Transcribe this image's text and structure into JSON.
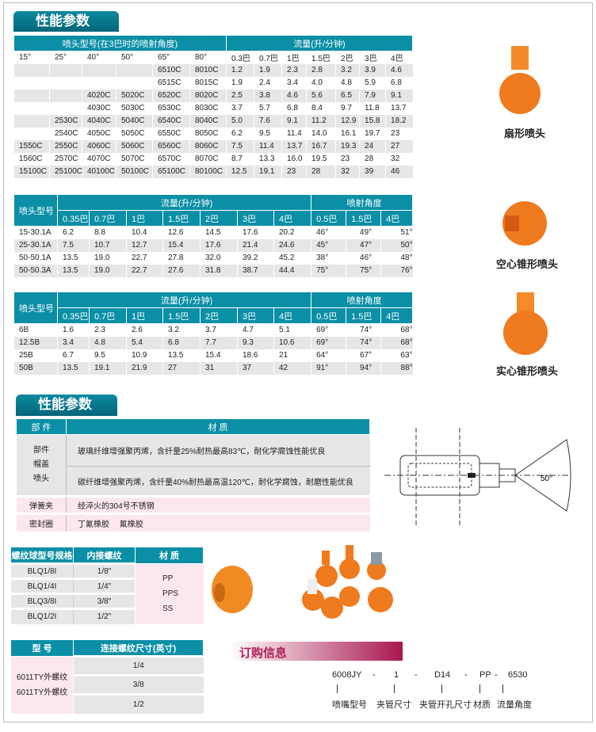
{
  "section_title": "性能参数",
  "fan_table": {
    "group_headers": [
      "喷头型号(在3巴时的喷射角度)",
      "流量(升/分钟)"
    ],
    "columns": [
      "15°",
      "25°",
      "40°",
      "50°",
      "65°",
      "80°",
      "0.3巴",
      "0.7巴",
      "1巴",
      "1.5巴",
      "2巴",
      "3巴",
      "4巴"
    ],
    "rows": [
      [
        "",
        "",
        "",
        "",
        "6510C",
        "8010C",
        "1.2",
        "1.9",
        "2.3",
        "2.8",
        "3.2",
        "3.9",
        "4.6"
      ],
      [
        "",
        "",
        "",
        "",
        "6515C",
        "8015C",
        "1.9",
        "2.4",
        "3.4",
        "4.0",
        "4.8",
        "5.9",
        "6.8"
      ],
      [
        "",
        "",
        "4020C",
        "5020C",
        "6520C",
        "8020C",
        "2.5",
        "3.8",
        "4.6",
        "5.6",
        "6.5",
        "7.9",
        "9.1"
      ],
      [
        "",
        "",
        "4030C",
        "5030C",
        "6530C",
        "8030C",
        "3.7",
        "5.7",
        "6.8",
        "8.4",
        "9.7",
        "11.8",
        "13.7"
      ],
      [
        "",
        "2530C",
        "4040C",
        "5040C",
        "6540C",
        "8040C",
        "5.0",
        "7.6",
        "9.1",
        "11.2",
        "12.9",
        "15.8",
        "18.2"
      ],
      [
        "",
        "2540C",
        "4050C",
        "5050C",
        "6550C",
        "8050C",
        "6.2",
        "9.5",
        "11.4",
        "14.0",
        "16.1",
        "19.7",
        "23"
      ],
      [
        "1550C",
        "2550C",
        "4060C",
        "5060C",
        "6560C",
        "8060C",
        "7.5",
        "11.4",
        "13.7",
        "16.7",
        "19.3",
        "24",
        "27"
      ],
      [
        "1560C",
        "2570C",
        "4070C",
        "5070C",
        "6570C",
        "8070C",
        "8.7",
        "13.3",
        "16.0",
        "19.5",
        "23",
        "28",
        "32"
      ],
      [
        "15100C",
        "25100C",
        "40100C",
        "50100C",
        "65100C",
        "80100C",
        "12.5",
        "19.1",
        "23",
        "28",
        "32",
        "39",
        "46"
      ]
    ]
  },
  "hollow_table": {
    "model_header": "喷头型号",
    "flow_header": "流量(升/分钟)",
    "angle_header": "喷射角度",
    "flow_cols": [
      "0.35巴",
      "0.7巴",
      "1巴",
      "1.5巴",
      "2巴",
      "3巴",
      "4巴"
    ],
    "angle_cols": [
      "0.5巴",
      "1.5巴",
      "4巴"
    ],
    "rows": [
      [
        "15-30.1A",
        "6.2",
        "8.8",
        "10.4",
        "12.6",
        "14.5",
        "17.6",
        "20.2",
        "46°",
        "49°",
        "51°"
      ],
      [
        "25-30.1A",
        "7.5",
        "10.7",
        "12.7",
        "15.4",
        "17.6",
        "21.4",
        "24.6",
        "45°",
        "47°",
        "50°"
      ],
      [
        "50-50.1A",
        "13.5",
        "19.0",
        "22.7",
        "27.8",
        "32.0",
        "39.2",
        "45.2",
        "38°",
        "46°",
        "48°"
      ],
      [
        "50-50.3A",
        "13.5",
        "19.0",
        "22.7",
        "27.6",
        "31.8",
        "38.7",
        "44.4",
        "75°",
        "75°",
        "76°"
      ]
    ]
  },
  "solid_table": {
    "model_header": "喷头型号",
    "flow_header": "流量(升/分钟)",
    "angle_header": "喷射角度",
    "flow_cols": [
      "0.35巴",
      "0.7巴",
      "1巴",
      "1.5巴",
      "2巴",
      "3巴",
      "4巴"
    ],
    "angle_cols": [
      "0.5巴",
      "1.5巴",
      "4巴"
    ],
    "rows": [
      [
        "6B",
        "1.6",
        "2.3",
        "2.6",
        "3.2",
        "3.7",
        "4.7",
        "5.1",
        "69°",
        "74°",
        "68°"
      ],
      [
        "12.5B",
        "3.4",
        "4.8",
        "5.4",
        "6.8",
        "7.7",
        "9.3",
        "10.6",
        "69°",
        "74°",
        "68°"
      ],
      [
        "25B",
        "6.7",
        "9.5",
        "10.9",
        "13.5",
        "15.4",
        "18.6",
        "21",
        "64°",
        "67°",
        "63°"
      ],
      [
        "50B",
        "13.5",
        "19.1",
        "21.9",
        "27",
        "31",
        "37",
        "42",
        "91°",
        "94°",
        "88°"
      ]
    ]
  },
  "nozzle_labels": [
    "扇形喷头",
    "空心锥形喷头",
    "实心锥形喷头"
  ],
  "materials": {
    "headers": [
      "部 件",
      "材 质"
    ],
    "part_group": [
      "部件",
      "帽盖",
      "喷头"
    ],
    "group_materials": [
      "玻璃纤维增强聚丙烯，含纤量25%耐热最高83℃，耐化学腐蚀性能优良",
      "碳纤维增强聚丙烯，含纤量40%耐热最高温120℃，耐化学腐蚀，耐磨性能优良"
    ],
    "rows": [
      [
        "弹簧夹",
        "经淬火的304号不锈钢"
      ],
      [
        "密封圈",
        "丁氰橡胶　 氟橡胶"
      ]
    ]
  },
  "diagram_angle": "50°",
  "ball_table": {
    "headers": [
      "螺纹球型号规格",
      "内接螺纹",
      "材 质"
    ],
    "rows": [
      [
        "BLQ1/8I",
        "1/8\""
      ],
      [
        "BLQ1/4I",
        "1/4\""
      ],
      [
        "BLQ3/8I",
        "3/8\""
      ],
      [
        "BLQ1/2I",
        "1/2\""
      ]
    ],
    "materials": [
      "PP",
      "PPS",
      "SS"
    ]
  },
  "type_table": {
    "headers": [
      "型 号",
      "连接螺纹尺寸(英寸)"
    ],
    "models": [
      "6011TY外螺纹",
      "6011TY外螺纹"
    ],
    "sizes": [
      "1/4",
      "3/8",
      "1/2"
    ]
  },
  "order": {
    "title": "订购信息",
    "codes": [
      "6008JY",
      "-",
      "1",
      "-",
      "D14",
      "-",
      "PP",
      "-",
      "6530"
    ],
    "labels": [
      "喷嘴型号",
      "夹管尺寸",
      "夹管开孔尺寸",
      "材质",
      "流量角度"
    ]
  },
  "colors": {
    "header": "#0a8fa6",
    "tab": "#046578",
    "nozzle": "#f07a1e",
    "order_accent": "#a8174f"
  }
}
